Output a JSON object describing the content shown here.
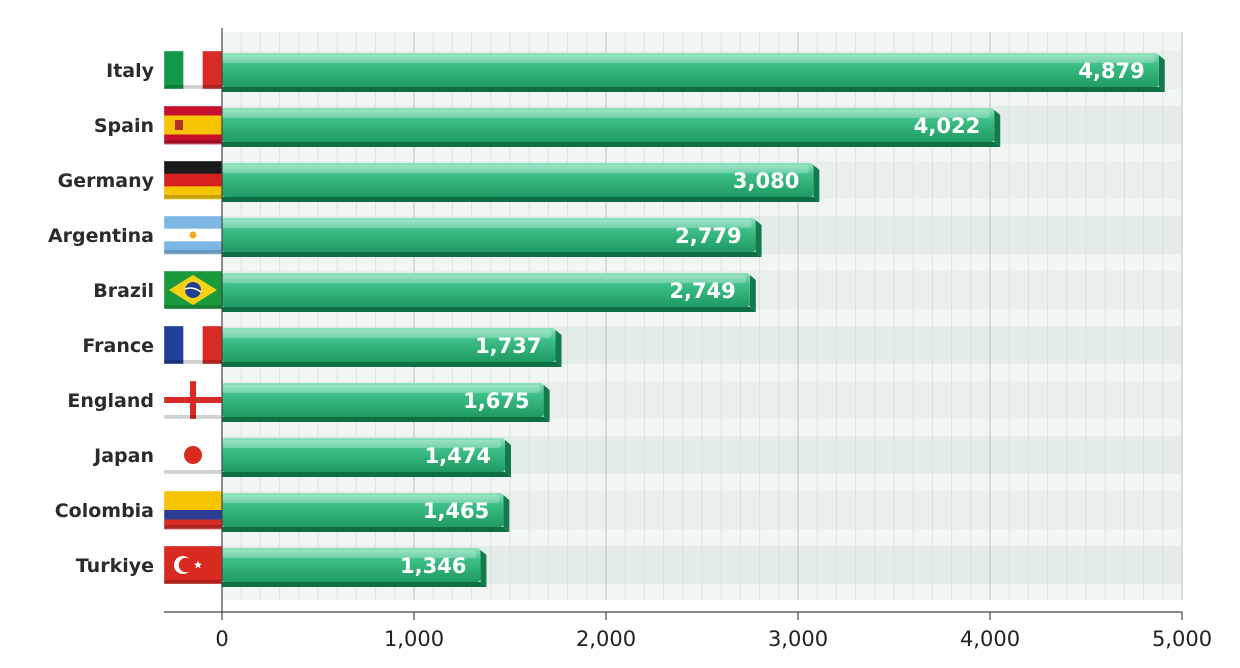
{
  "chart_data": {
    "type": "bar",
    "orientation": "horizontal",
    "categories": [
      "Italy",
      "Spain",
      "Germany",
      "Argentina",
      "Brazil",
      "France",
      "England",
      "Japan",
      "Colombia",
      "Turkiye"
    ],
    "values": [
      4879,
      4022,
      3080,
      2779,
      2749,
      1737,
      1675,
      1474,
      1465,
      1346
    ],
    "value_labels": [
      "4,879",
      "4,022",
      "3,080",
      "2,779",
      "2,749",
      "1,737",
      "1,675",
      "1,474",
      "1,465",
      "1,346"
    ],
    "xlim": [
      0,
      5000
    ],
    "xticks": [
      0,
      1000,
      2000,
      3000,
      4000,
      5000
    ],
    "xtick_labels": [
      "0",
      "1,000",
      "2,000",
      "3,000",
      "4,000",
      "5,000"
    ],
    "title": "",
    "xlabel": "",
    "ylabel": "",
    "grid": true,
    "flags": [
      "italy-flag",
      "spain-flag",
      "germany-flag",
      "argentina-flag",
      "brazil-flag",
      "france-flag",
      "england-flag",
      "japan-flag",
      "colombia-flag",
      "turkiye-flag"
    ],
    "colors": {
      "bar": "#2eb07a",
      "bar_light": "#6fd9a8",
      "bar_dark": "#0e6e44",
      "band_a": "#eaefec",
      "band_b": "#e3ece6",
      "plot_bg": "#f1f6f3",
      "grid_major": "#b9c2bd",
      "grid_minor": "#d6e4dc",
      "axis": "#444444"
    }
  }
}
